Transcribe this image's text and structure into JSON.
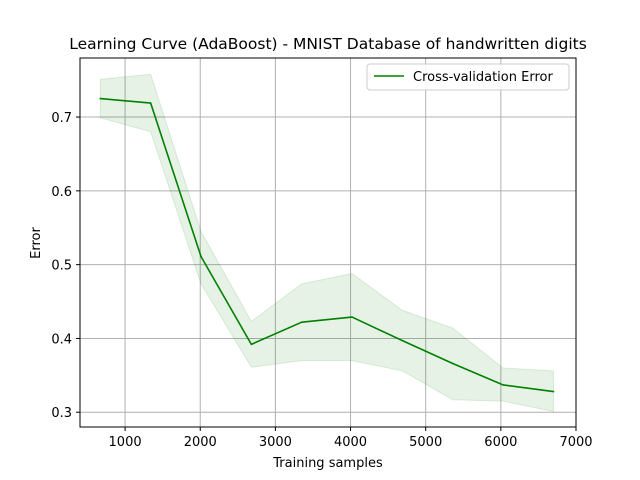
{
  "chart_data": {
    "type": "line",
    "title": "Learning Curve (AdaBoost) - MNIST Database of handwritten digits",
    "xlabel": "Training samples",
    "ylabel": "Error",
    "xlim": [
      400,
      7000
    ],
    "ylim": [
      0.28,
      0.78
    ],
    "xticks": [
      1000,
      2000,
      3000,
      4000,
      5000,
      6000,
      7000
    ],
    "yticks": [
      0.3,
      0.4,
      0.5,
      0.6,
      0.7
    ],
    "xtick_labels": [
      "1000",
      "2000",
      "3000",
      "4000",
      "5000",
      "6000",
      "7000"
    ],
    "ytick_labels": [
      "0.3",
      "0.4",
      "0.5",
      "0.6",
      "0.7"
    ],
    "grid": true,
    "legend_position": "top-right",
    "series": [
      {
        "name": "Cross-validation Error",
        "color": "#008000",
        "band_color": "#008000",
        "x": [
          670,
          1340,
          2010,
          2680,
          3350,
          4020,
          4690,
          5360,
          6030,
          6700
        ],
        "y": [
          0.725,
          0.719,
          0.511,
          0.392,
          0.422,
          0.429,
          0.397,
          0.366,
          0.337,
          0.328
        ],
        "y_upper": [
          0.751,
          0.758,
          0.545,
          0.423,
          0.474,
          0.488,
          0.438,
          0.414,
          0.36,
          0.356
        ],
        "y_lower": [
          0.699,
          0.68,
          0.474,
          0.361,
          0.37,
          0.37,
          0.356,
          0.317,
          0.315,
          0.301
        ]
      }
    ]
  }
}
